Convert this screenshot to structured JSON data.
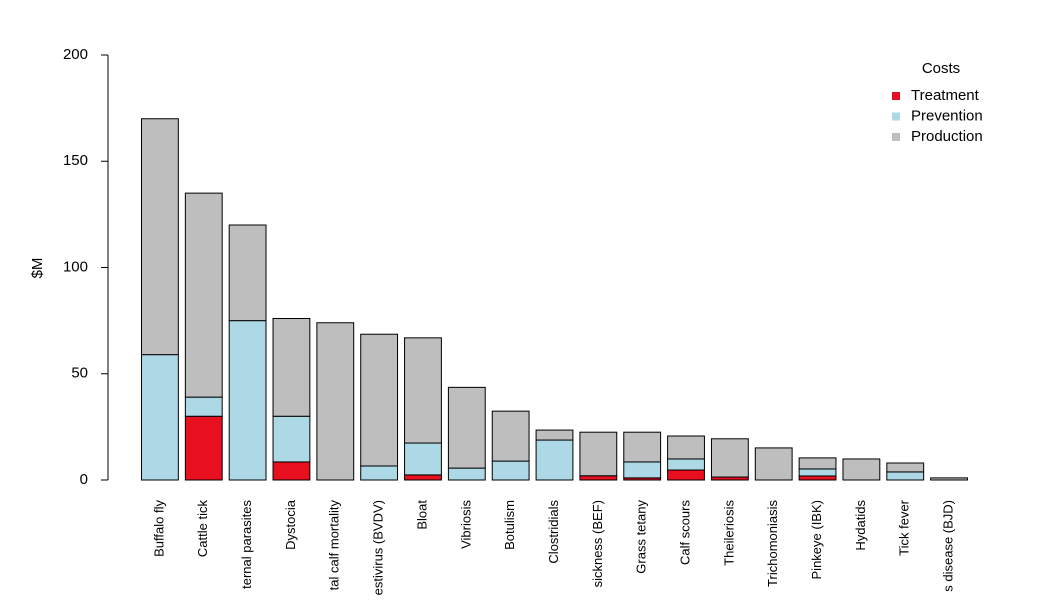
{
  "chart_data": {
    "type": "stacked-bar",
    "y_label": "$M",
    "legend_title": "Costs",
    "legend_position": "top-right",
    "categories": [
      "Buffalo fly",
      "Cattle tick",
      "ternal parasites",
      "Dystocia",
      "tal calf mortality",
      "estivirus (BVDV)",
      "Bloat",
      "Vibriosis",
      "Botulism",
      "Clostridials",
      "sickness (BEF)",
      "Grass tetany",
      "Calf scours",
      "Theileriosis",
      "Trichomoniasis",
      "Pinkeye (IBK)",
      "Hydatids",
      "Tick fever",
      "s disease (BJD)"
    ],
    "series": [
      {
        "name": "Treatment",
        "color": "#e8101f",
        "values": [
          0,
          30,
          0,
          8.5,
          0,
          0,
          2.4,
          0,
          0,
          0,
          2,
          1,
          4.7,
          1.4,
          0,
          1.9,
          0,
          0,
          0
        ]
      },
      {
        "name": "Prevention",
        "color": "#add8e6",
        "values": [
          59,
          9,
          75,
          21.5,
          0,
          6.6,
          15,
          5.6,
          8.9,
          18.8,
          0,
          7.5,
          5.2,
          0,
          0,
          3.3,
          0,
          3.8,
          0
        ]
      },
      {
        "name": "Production",
        "color": "#bebebe",
        "values": [
          111,
          96,
          45,
          46,
          74,
          62,
          49.5,
          38,
          23.5,
          4.7,
          20.5,
          14,
          10.8,
          18,
          15.1,
          5.2,
          9.9,
          4.2,
          1
        ]
      }
    ],
    "ylim": [
      0,
      200
    ],
    "yticks": [
      0,
      50,
      100,
      150,
      200
    ]
  }
}
